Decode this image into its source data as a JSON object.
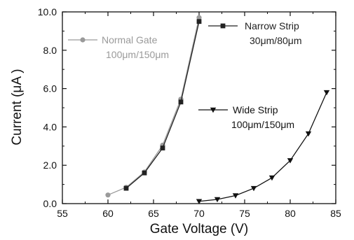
{
  "chart_data": {
    "type": "line",
    "xlabel": "Gate Voltage  (V)",
    "ylabel": "Current  (μA )",
    "xlim": [
      55,
      85
    ],
    "ylim": [
      0,
      10
    ],
    "x_ticks": [
      "55",
      "60",
      "65",
      "70",
      "75",
      "80",
      "85"
    ],
    "y_ticks": [
      "0.0",
      "2.0",
      "4.0",
      "6.0",
      "8.0",
      "10.0"
    ],
    "grid": false,
    "series": [
      {
        "name": "Normal Gate",
        "subtitle": "100μm/150μm",
        "marker": "circle",
        "color": "#9a9a9a",
        "legend_position": "top-left",
        "x": [
          60,
          62,
          64,
          66,
          68,
          70
        ],
        "y": [
          0.45,
          0.85,
          1.65,
          3.05,
          5.45,
          9.7
        ]
      },
      {
        "name": "Narrow Strip",
        "subtitle": "30μm/80μm",
        "marker": "square",
        "color": "#222222",
        "legend_position": "top-right",
        "x": [
          62,
          64,
          66,
          68,
          70
        ],
        "y": [
          0.8,
          1.6,
          2.9,
          5.3,
          9.5
        ]
      },
      {
        "name": "Wide Strip",
        "subtitle": "100μm/150μm",
        "marker": "triangle-down",
        "color": "#111111",
        "legend_position": "middle-right",
        "x": [
          70,
          72,
          74,
          76,
          78,
          80,
          82,
          84
        ],
        "y": [
          0.12,
          0.22,
          0.42,
          0.8,
          1.35,
          2.25,
          3.65,
          5.8
        ]
      }
    ]
  }
}
